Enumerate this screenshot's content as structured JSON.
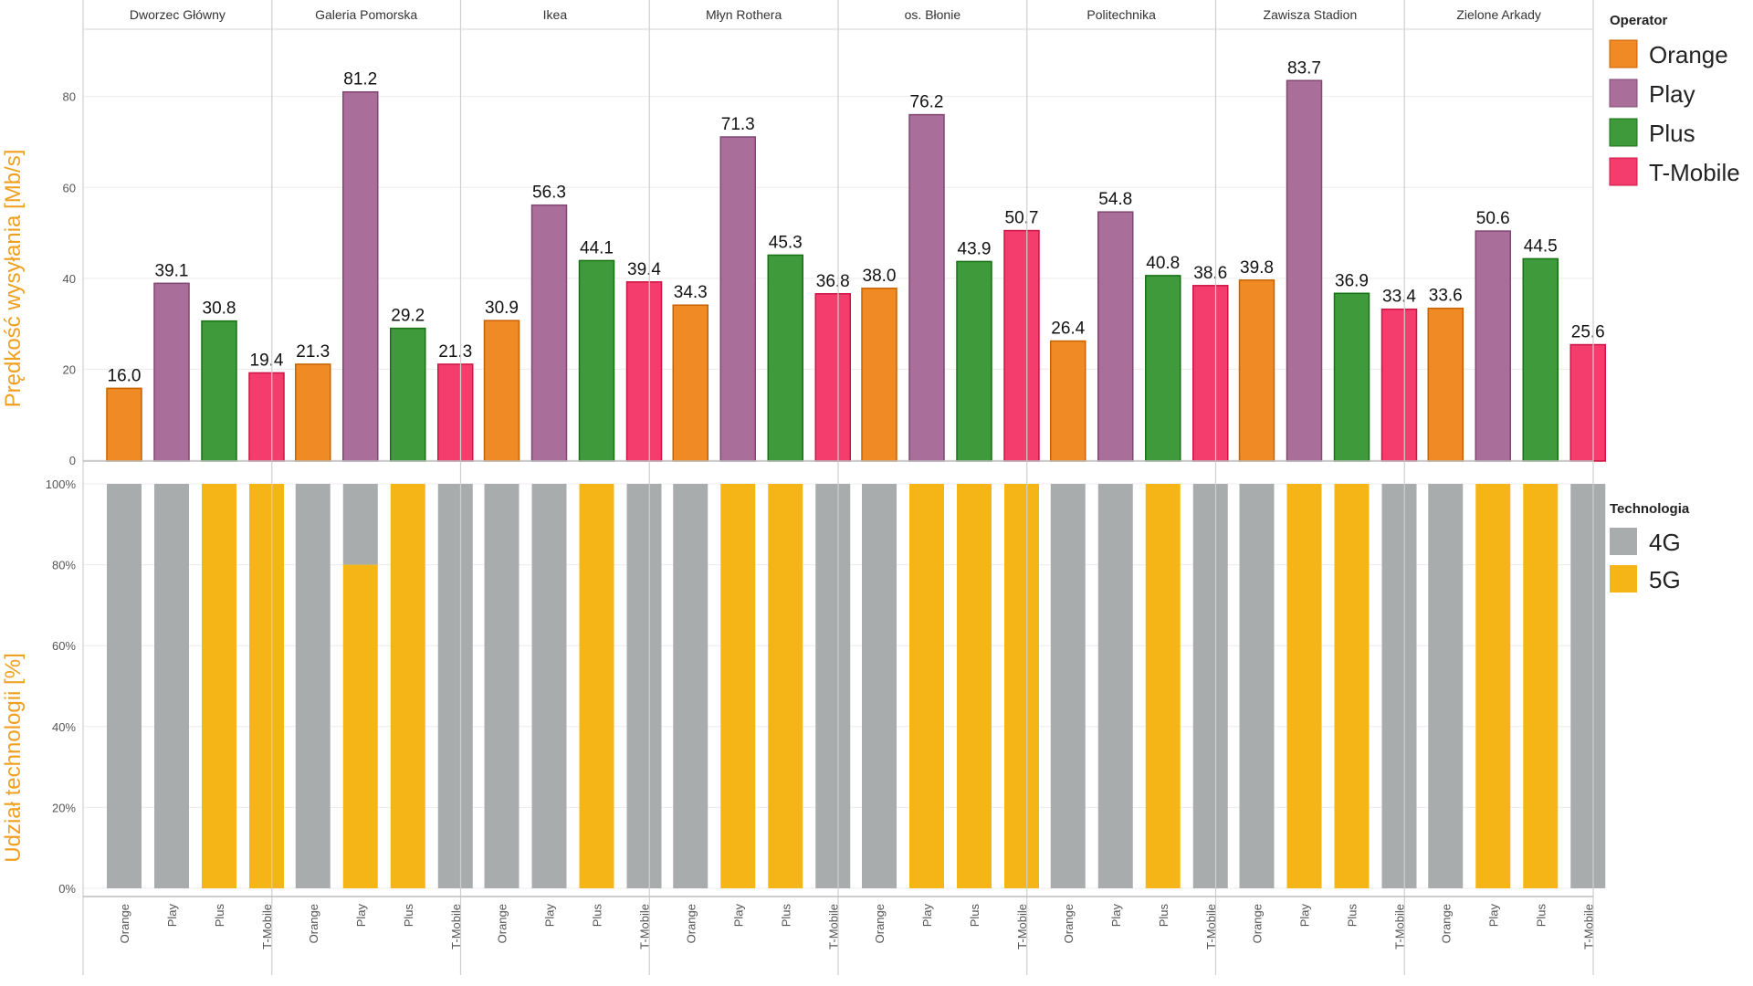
{
  "chart_data": {
    "type": "bar",
    "locations": [
      "Dworzec Główny",
      "Galeria Pomorska",
      "Ikea",
      "Młyn Rothera",
      "os. Błonie",
      "Politechnika",
      "Zawisza Stadion",
      "Zielone Arkady"
    ],
    "operators": [
      "Orange",
      "Play",
      "Plus",
      "T-Mobile"
    ],
    "speed_panel": {
      "ylabel": "Prędkość wysyłania [Mb/s]",
      "ylim": [
        0,
        95
      ],
      "yticks": [
        0,
        20,
        40,
        60,
        80
      ],
      "values": [
        [
          16.0,
          39.1,
          30.8,
          19.4
        ],
        [
          21.3,
          81.2,
          29.2,
          21.3
        ],
        [
          30.9,
          56.3,
          44.1,
          39.4
        ],
        [
          34.3,
          71.3,
          45.3,
          36.8
        ],
        [
          38.0,
          76.2,
          43.9,
          50.7
        ],
        [
          26.4,
          54.8,
          40.8,
          38.6
        ],
        [
          39.8,
          83.7,
          36.9,
          33.4
        ],
        [
          33.6,
          50.6,
          44.5,
          25.6
        ]
      ],
      "labels": [
        [
          "16.0",
          "39.1",
          "30.8",
          "19.4"
        ],
        [
          "21.3",
          "81.2",
          "29.2",
          "21.3"
        ],
        [
          "30.9",
          "56.3",
          "44.1",
          "39.4"
        ],
        [
          "34.3",
          "71.3",
          "45.3",
          "36.8"
        ],
        [
          "38.0",
          "76.2",
          "43.9",
          "50.7"
        ],
        [
          "26.4",
          "54.8",
          "40.8",
          "38.6"
        ],
        [
          "39.8",
          "83.7",
          "36.9",
          "33.4"
        ],
        [
          "33.6",
          "50.6",
          "44.5",
          "25.6"
        ]
      ]
    },
    "tech_panel": {
      "ylabel": "Udział technologii [%]",
      "ylim": [
        0,
        100
      ],
      "yticks": [
        "0%",
        "20%",
        "40%",
        "60%",
        "80%",
        "100%"
      ],
      "share_5g": [
        [
          0,
          0,
          100,
          100
        ],
        [
          0,
          80,
          100,
          0
        ],
        [
          0,
          0,
          100,
          0
        ],
        [
          0,
          100,
          100,
          0
        ],
        [
          0,
          100,
          100,
          100
        ],
        [
          0,
          0,
          100,
          0
        ],
        [
          0,
          100,
          100,
          0
        ],
        [
          0,
          100,
          100,
          0
        ]
      ]
    },
    "legend_operator": {
      "title": "Operator",
      "items": [
        {
          "label": "Orange",
          "color": "#f08a24"
        },
        {
          "label": "Play",
          "color": "#a96f9a"
        },
        {
          "label": "Plus",
          "color": "#3f9a3c"
        },
        {
          "label": "T-Mobile",
          "color": "#f43d6c"
        }
      ]
    },
    "legend_tech": {
      "title": "Technologia",
      "items": [
        {
          "label": "4G",
          "color": "#a9acad"
        },
        {
          "label": "5G",
          "color": "#f6b516"
        }
      ]
    },
    "grid": true,
    "legend_position": "right"
  }
}
